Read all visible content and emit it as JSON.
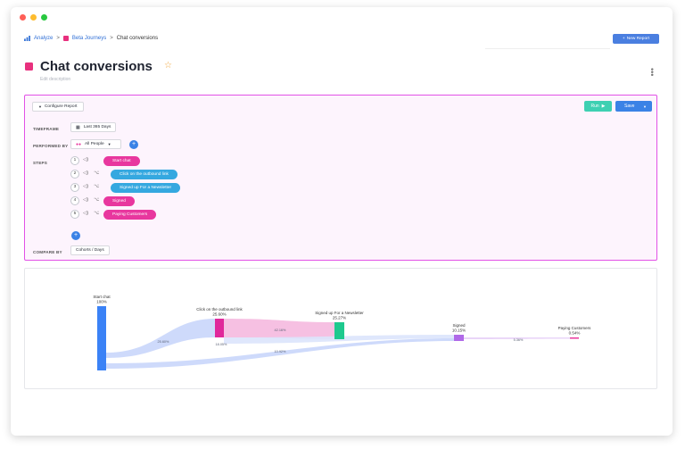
{
  "breadcrumb": {
    "root": "Analyze",
    "parent": "Beta Journeys",
    "current": "Chat conversions"
  },
  "header": {
    "new_report_label": "New Report",
    "title": "Chat conversions",
    "subtitle": "Edit description"
  },
  "toolbar": {
    "configure_label": "Configure Report",
    "run_label": "Run",
    "save_label": "Save"
  },
  "config": {
    "timeframe_label": "TIMEFRAME",
    "timeframe_value": "Last 365 Days",
    "performed_by_label": "PERFORMED BY",
    "performed_by_value": "All People",
    "steps_label": "STEPS",
    "steps": [
      {
        "num": "1",
        "event": "Start chat",
        "color": "#e8379e",
        "has_branch": false
      },
      {
        "num": "2",
        "event": "Click on the outbound link",
        "color": "#35a8e0",
        "has_branch": true
      },
      {
        "num": "3",
        "event": "Signed up For a Newsletter",
        "color": "#35a8e0",
        "has_branch": true
      },
      {
        "num": "4",
        "event": "Signed",
        "color": "#e8379e",
        "has_branch": true
      },
      {
        "num": "5",
        "event": "Paying Customers",
        "color": "#e8379e",
        "has_branch": true
      }
    ],
    "compare_by_label": "COMPARE BY",
    "compare_by_value": "Cohorts / Days"
  },
  "chart_data": {
    "type": "sankey",
    "nodes": [
      {
        "name": "Start chat",
        "value_label": "100%",
        "value": 100,
        "color": "#3b82f6"
      },
      {
        "name": "Click on the outbound link",
        "value_label": "25.60%",
        "value": 25.6,
        "color": "#e0289b"
      },
      {
        "name": "Signed up For a Newsletter",
        "value_label": "25.27%",
        "value": 25.27,
        "color": "#1ec98e"
      },
      {
        "name": "Signed",
        "value_label": "10.15%",
        "value": 10.15,
        "color": "#b069e8"
      },
      {
        "name": "Paying Customers",
        "value_label": "0.54%",
        "value": 0.54,
        "color": "#e8379e"
      }
    ],
    "flows": [
      {
        "from": "Start chat",
        "to": "Click on the outbound link",
        "label": "25.60%"
      },
      {
        "from": "Click on the outbound link",
        "to": "Signed up For a Newsletter",
        "label": "42.16%"
      },
      {
        "from": "Click on the outbound link",
        "to": "Signed",
        "label": "18.05%"
      },
      {
        "from": "Start chat",
        "to": "Signed",
        "label": "10.92%"
      },
      {
        "from": "Signed",
        "to": "Paying Customers",
        "label": "5.36%"
      }
    ]
  }
}
